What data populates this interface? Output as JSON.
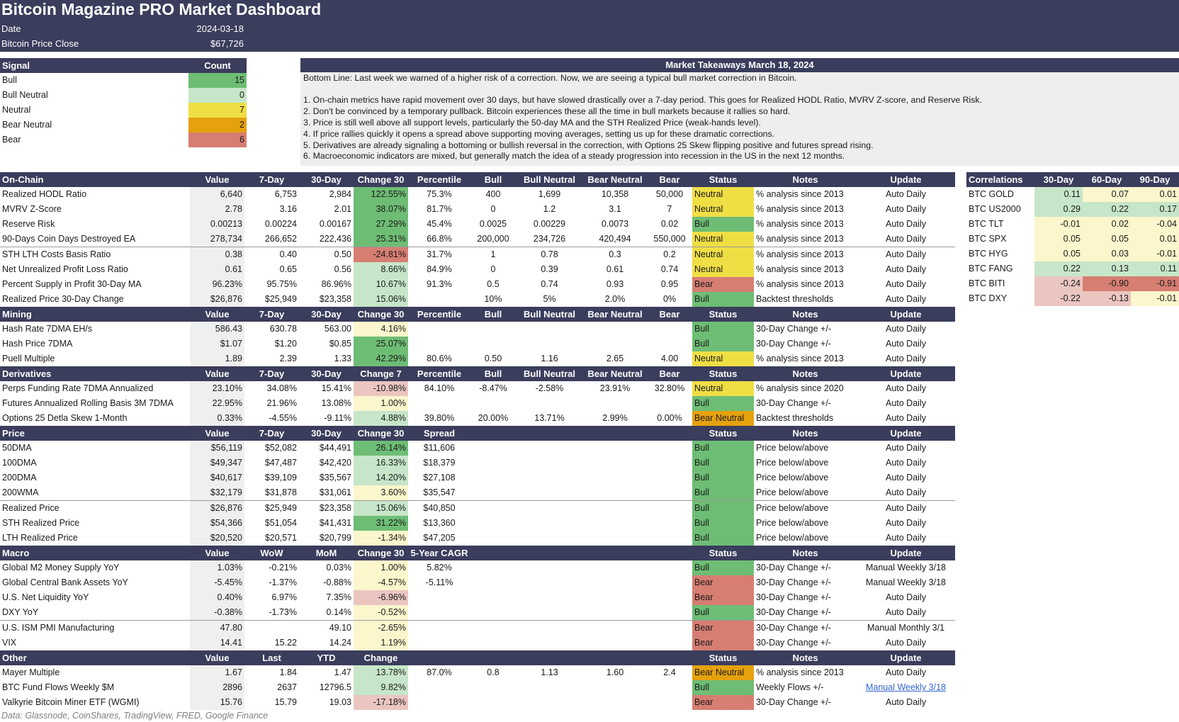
{
  "header": {
    "title": "Bitcoin Magazine PRO Market Dashboard",
    "date_label": "Date",
    "date_value": "2024-03-18",
    "price_label": "Bitcoin Price Close",
    "price_value": "$67,726"
  },
  "signals": {
    "head": [
      "Signal",
      "Count"
    ],
    "rows": [
      {
        "label": "Bull",
        "count": "15",
        "color": "#6ebd75"
      },
      {
        "label": "Bull Neutral",
        "count": "0",
        "color": "#c7e6c9"
      },
      {
        "label": "Neutral",
        "count": "7",
        "color": "#f0de45"
      },
      {
        "label": "Bear Neutral",
        "count": "2",
        "color": "#e5a10e"
      },
      {
        "label": "Bear",
        "count": "6",
        "color": "#d67e72"
      }
    ]
  },
  "takeaways": {
    "title": "Market Takeaways March 18, 2024",
    "bottom_line": "Bottom Line: Last week we warned of a higher risk of a correction. Now, we are seeing a typical bull market correction in Bitcoin.",
    "points": [
      "1. On-chain metrics have rapid movement over 30 days, but have slowed drastically over a 7-day period. This goes for Realized HODL Ratio, MVRV Z-score, and Reserve Risk.",
      "2. Don't be convinced by a temporary pullback. Bitcoin experiences these all the time in bull markets because it rallies so hard.",
      "3. Price is still well above all support levels, particularly the 50-day MA and the STH Realized Price (weak-hands level).",
      "4. If price rallies quickly it opens a spread above supporting moving averages, setting us up for these dramatic corrections.",
      "5. Derivatives are already signaling a bottoming or bullish reversal in the correction, with Options 25 Skew flipping positive and futures spread rising.",
      "6. Macroeconomic indicators are mixed, but generally match the idea of a steady progression into recession in the US in the next 12 months."
    ]
  },
  "sections": [
    {
      "id": "onchain",
      "head": [
        "On-Chain",
        "Value",
        "7-Day",
        "30-Day",
        "Change 30",
        "Percentile",
        "Bull",
        "Bull Neutral",
        "Bear Neutral",
        "Bear",
        "Status",
        "Notes",
        "Update"
      ],
      "rows": [
        [
          "Realized HODL Ratio",
          "6,640",
          "6,753",
          "2,984",
          "122.55%",
          "75.3%",
          "400",
          "1,699",
          "10,358",
          "50,000",
          "Neutral",
          "% analysis since 2013",
          "Auto Daily"
        ],
        [
          "MVRV Z-Score",
          "2.78",
          "3.16",
          "2.01",
          "38.07%",
          "81.7%",
          "0",
          "1.2",
          "3.1",
          "7",
          "Neutral",
          "% analysis since 2013",
          "Auto Daily"
        ],
        [
          "Reserve Risk",
          "0.00213",
          "0.00224",
          "0.00167",
          "27.29%",
          "45.4%",
          "0.0025",
          "0.00229",
          "0.0073",
          "0.02",
          "Bull",
          "% analysis since 2013",
          "Auto Daily"
        ],
        [
          "90-Days Coin Days Destroyed EA",
          "278,734",
          "266,652",
          "222,436",
          "25.31%",
          "66.8%",
          "200,000",
          "234,726",
          "420,494",
          "550,000",
          "Neutral",
          "% analysis since 2013",
          "Auto Daily"
        ],
        [
          "STH LTH Costs Basis Ratio",
          "0.38",
          "0.40",
          "0.50",
          "-24.81%",
          "31.7%",
          "1",
          "0.78",
          "0.3",
          "0.2",
          "Neutral",
          "% analysis since 2013",
          "Auto Daily"
        ],
        [
          "Net Unrealized Profit Loss Ratio",
          "0.61",
          "0.65",
          "0.56",
          "8.66%",
          "84.9%",
          "0",
          "0.39",
          "0.61",
          "0.74",
          "Neutral",
          "% analysis since 2013",
          "Auto Daily"
        ],
        [
          "Percent Supply in Profit 30-Day MA",
          "96.23%",
          "95.75%",
          "86.96%",
          "10.67%",
          "91.3%",
          "0.5",
          "0.74",
          "0.93",
          "0.95",
          "Bear",
          "% analysis since 2013",
          "Auto Daily"
        ],
        [
          "Realized Price 30-Day Change",
          "$26,876",
          "$25,949",
          "$23,358",
          "15.06%",
          "",
          "10%",
          "5%",
          "2.0%",
          "0%",
          "Bull",
          "Backtest thresholds",
          "Auto Daily"
        ]
      ],
      "chg_colors": [
        "g1",
        "g1",
        "g1",
        "g1",
        "r1",
        "g2",
        "g2",
        "g2"
      ],
      "sep_after": [
        3
      ]
    },
    {
      "id": "mining",
      "head": [
        "Mining",
        "Value",
        "7-Day",
        "30-Day",
        "Change 30",
        "Percentile",
        "Bull",
        "Bull Neutral",
        "Bear Neutral",
        "Bear",
        "Status",
        "Notes",
        "Update"
      ],
      "rows": [
        [
          "Hash Rate 7DMA EH/s",
          "586.43",
          "630.78",
          "563.00",
          "4.16%",
          "",
          "",
          "",
          "",
          "",
          "Bull",
          "30-Day Change +/-",
          "Auto Daily"
        ],
        [
          "Hash Price 7DMA",
          "$1.07",
          "$1.20",
          "$0.85",
          "25.07%",
          "",
          "",
          "",
          "",
          "",
          "Bull",
          "30-Day Change +/-",
          "Auto Daily"
        ],
        [
          "Puell Multiple",
          "1.89",
          "2.39",
          "1.33",
          "42.29%",
          "80.6%",
          "0.50",
          "1.16",
          "2.65",
          "4.00",
          "Neutral",
          "% analysis since 2013",
          "Auto Daily"
        ]
      ],
      "chg_colors": [
        "y2",
        "g1",
        "g1"
      ],
      "sep_after": []
    },
    {
      "id": "derivatives",
      "head": [
        "Derivatives",
        "Value",
        "7-Day",
        "30-Day",
        "Change 7",
        "Percentile",
        "Bull",
        "Bull Neutral",
        "Bear Neutral",
        "Bear",
        "Status",
        "Notes",
        "Update"
      ],
      "rows": [
        [
          "Perps Funding Rate 7DMA Annualized",
          "23.10%",
          "34.08%",
          "15.41%",
          "-10.98%",
          "84.10%",
          "-8.47%",
          "-2.58%",
          "23.91%",
          "32.80%",
          "Neutral",
          "% analysis since 2020",
          "Auto Daily"
        ],
        [
          "Futures Annualized Rolling Basis 3M 7DMA",
          "22.95%",
          "21.96%",
          "13.08%",
          "1.00%",
          "",
          "",
          "",
          "",
          "",
          "Bull",
          "30-Day Change +/-",
          "Auto Daily"
        ],
        [
          "Options 25 Detla Skew 1-Month",
          "0.33%",
          "-4.55%",
          "-9.11%",
          "4.88%",
          "39.80%",
          "20.00%",
          "13.71%",
          "2.99%",
          "0.00%",
          "Bear Neutral",
          "Backtest thresholds",
          "Auto Daily"
        ]
      ],
      "chg_colors": [
        "r2",
        "y2",
        "g2"
      ],
      "sep_after": []
    },
    {
      "id": "price",
      "head": [
        "Price",
        "Value",
        "7-Day",
        "30-Day",
        "Change 30",
        "Spread",
        "",
        "",
        "",
        "",
        "Status",
        "Notes",
        "Update"
      ],
      "rows": [
        [
          "50DMA",
          "$56,119",
          "$52,082",
          "$44,491",
          "26.14%",
          "$11,606",
          "",
          "",
          "",
          "",
          "Bull",
          "Price below/above",
          "Auto Daily"
        ],
        [
          "100DMA",
          "$49,347",
          "$47,487",
          "$42,420",
          "16.33%",
          "$18,379",
          "",
          "",
          "",
          "",
          "Bull",
          "Price below/above",
          "Auto Daily"
        ],
        [
          "200DMA",
          "$40,617",
          "$39,109",
          "$35,567",
          "14.20%",
          "$27,108",
          "",
          "",
          "",
          "",
          "Bull",
          "Price below/above",
          "Auto Daily"
        ],
        [
          "200WMA",
          "$32,179",
          "$31,878",
          "$31,061",
          "3.60%",
          "$35,547",
          "",
          "",
          "",
          "",
          "Bull",
          "Price below/above",
          "Auto Daily"
        ],
        [
          "Realized Price",
          "$26,876",
          "$25,949",
          "$23,358",
          "15.06%",
          "$40,850",
          "",
          "",
          "",
          "",
          "Bull",
          "Price below/above",
          "Auto Daily"
        ],
        [
          "STH Realized Price",
          "$54,366",
          "$51,054",
          "$41,431",
          "31.22%",
          "$13,360",
          "",
          "",
          "",
          "",
          "Bull",
          "Price below/above",
          "Auto Daily"
        ],
        [
          "LTH Realized Price",
          "$20,520",
          "$20,571",
          "$20,799",
          "-1.34%",
          "$47,205",
          "",
          "",
          "",
          "",
          "Bull",
          "Price below/above",
          "Auto Daily"
        ]
      ],
      "chg_colors": [
        "g1",
        "g2",
        "g2",
        "y2",
        "g2",
        "g1",
        "y2"
      ],
      "sep_after": [
        3
      ]
    },
    {
      "id": "macro",
      "head": [
        "Macro",
        "Value",
        "WoW",
        "MoM",
        "Change 30",
        "5-Year CAGR",
        "",
        "",
        "",
        "",
        "Status",
        "Notes",
        "Update"
      ],
      "rows": [
        [
          "Global M2 Money Supply YoY",
          "1.03%",
          "-0.21%",
          "0.03%",
          "1.00%",
          "5.82%",
          "",
          "",
          "",
          "",
          "Bull",
          "30-Day Change +/-",
          "Manual Weekly 3/18"
        ],
        [
          "Global Central Bank Assets YoY",
          "-5.45%",
          "-1.37%",
          "-0.88%",
          "-4.57%",
          "-5.11%",
          "",
          "",
          "",
          "",
          "Bear",
          "30-Day Change +/-",
          "Manual Weekly 3/18"
        ],
        [
          "U.S. Net Liquidity YoY",
          "0.40%",
          "6.97%",
          "7.35%",
          "-6.96%",
          "",
          "",
          "",
          "",
          "",
          "Bear",
          "30-Day Change +/-",
          "Auto Daily"
        ],
        [
          "DXY YoY",
          "-0.38%",
          "-1.73%",
          "0.14%",
          "-0.52%",
          "",
          "",
          "",
          "",
          "",
          "Bull",
          "30-Day Change +/-",
          "Auto Daily"
        ],
        [
          "U.S. ISM PMI Manufacturing",
          "47.80",
          "",
          "49.10",
          "-2.65%",
          "",
          "",
          "",
          "",
          "",
          "Bear",
          "30-Day Change +/-",
          "Manual Monthly 3/1"
        ],
        [
          "VIX",
          "14.41",
          "15.22",
          "14.24",
          "1.19%",
          "",
          "",
          "",
          "",
          "",
          "Bear",
          "30-Day Change +/-",
          "Auto Daily"
        ]
      ],
      "chg_colors": [
        "y2",
        "y2",
        "r2",
        "y2",
        "y2",
        "y2"
      ],
      "sep_after": [
        3
      ]
    },
    {
      "id": "other",
      "head": [
        "Other",
        "Value",
        "Last",
        "YTD",
        "Change",
        "",
        "",
        "",
        "",
        "",
        "Status",
        "Notes",
        "Update"
      ],
      "rows": [
        [
          "Mayer Multiple",
          "1.67",
          "1.84",
          "1.47",
          "13.78%",
          "87.0%",
          "0.8",
          "1.13",
          "1.60",
          "2.4",
          "Bear Neutral",
          "% analysis since 2013",
          "Auto Daily"
        ],
        [
          "BTC Fund Flows Weekly $M",
          "2896",
          "2637",
          "12796.5",
          "9.82%",
          "",
          "",
          "",
          "",
          "",
          "Bull",
          "Weekly Flows +/-",
          "Manual Weekly 3/18"
        ],
        [
          "Valkyrie Bitcoin Miner ETF (WGMI)",
          "15.76",
          "15.79",
          "19.03",
          "-17.18%",
          "",
          "",
          "",
          "",
          "",
          "Bear",
          "30-Day Change +/-",
          "Auto Daily"
        ]
      ],
      "chg_colors": [
        "g2",
        "g2",
        "r2"
      ],
      "sep_after": [],
      "link_cell": [
        1,
        12
      ]
    }
  ],
  "status_colors": {
    "Bull": "#6ebd75",
    "Neutral": "#f0de45",
    "Bear": "#d67e72",
    "Bear Neutral": "#e5a10e"
  },
  "correlations": {
    "head": [
      "Correlations",
      "30-Day",
      "60-Day",
      "90-Day"
    ],
    "rows": [
      [
        "BTC GOLD",
        "0.11",
        "0.07",
        "0.01"
      ],
      [
        "BTC US2000",
        "0.29",
        "0.22",
        "0.17"
      ],
      [
        "BTC TLT",
        "-0.01",
        "0.02",
        "-0.04"
      ],
      [
        "BTC SPX",
        "0.05",
        "0.05",
        "0.01"
      ],
      [
        "BTC HYG",
        "0.05",
        "0.03",
        "-0.01"
      ],
      [
        "BTC FANG",
        "0.22",
        "0.13",
        "0.11"
      ],
      [
        "BTC BITI",
        "-0.24",
        "-0.90",
        "-0.91"
      ],
      [
        "BTC DXY",
        "-0.22",
        "-0.13",
        "-0.01"
      ]
    ],
    "colors": [
      [
        "g2",
        "y2",
        "y2"
      ],
      [
        "g2",
        "g2",
        "g2"
      ],
      [
        "y2",
        "y2",
        "y2"
      ],
      [
        "y2",
        "y2",
        "y2"
      ],
      [
        "y2",
        "y2",
        "y2"
      ],
      [
        "g2",
        "g2",
        "g2"
      ],
      [
        "r2",
        "r1",
        "r1"
      ],
      [
        "r2",
        "r2",
        "y2"
      ]
    ]
  },
  "footer": "Data: Glassnode, CoinShares, TradingView, FRED, Google Finance"
}
